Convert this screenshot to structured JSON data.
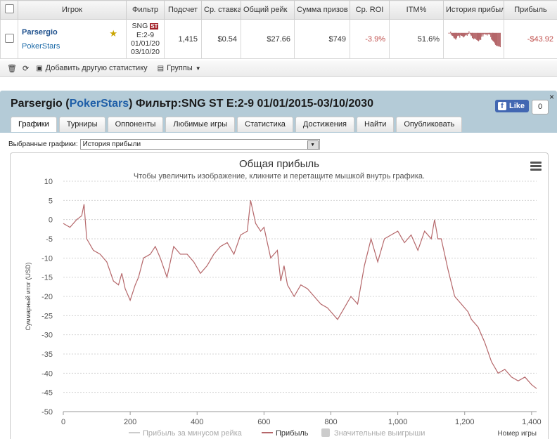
{
  "table": {
    "headers": [
      "Игрок",
      "Фильтр",
      "Подсчет",
      "Ср. ставка",
      "Общий рейк",
      "Сумма призов",
      "Ср. ROI",
      "ITM%",
      "История прибыли",
      "Прибыль"
    ],
    "row": {
      "player": "Parsergio",
      "site": "PokerStars",
      "filter_line1": "SNG",
      "filter_badge": "ST",
      "filter_line2": "E:2-9",
      "filter_line3": "01/01/20",
      "filter_line4": "03/10/20",
      "count": "1,415",
      "avg_stake": "$0.54",
      "total_rake": "$27.66",
      "prize_sum": "$749",
      "avg_roi": "-3.9%",
      "itm": "51.6%",
      "profit": "-$43.92"
    }
  },
  "toolbar": {
    "add_stat": "Добавить другую статистику",
    "groups": "Группы"
  },
  "panel": {
    "title_player": "Parsergio",
    "title_site": "PokerStars",
    "title_filter": "Фильтр:SNG ST E:2-9 01/01/2015-03/10/2030",
    "fb_like": "Like",
    "fb_count": "0",
    "close": "×",
    "tabs": [
      "Графики",
      "Турниры",
      "Оппоненты",
      "Любимые игры",
      "Статистика",
      "Достижения",
      "Найти",
      "Опубликовать"
    ],
    "selected_label": "Выбранные графики:",
    "selected_value": "История прибыли"
  },
  "colors": {
    "line": "#b5676a",
    "header_bg": "#b4cbd7",
    "negative": "#c0504d",
    "link": "#1f5fa8"
  },
  "chart_data": {
    "type": "line",
    "title": "Общая прибыль",
    "subtitle": "Чтобы увеличить изображение, кликните и перетащите мышкой внутрь графика.",
    "ylabel": "Суммарный итог (USD)",
    "xlabel": "Номер игры",
    "xlim": [
      0,
      1415
    ],
    "ylim": [
      -50,
      10
    ],
    "xticks": [
      "0",
      "200",
      "400",
      "600",
      "800",
      "1,000",
      "1,200",
      "1,400"
    ],
    "yticks": [
      "10",
      "5",
      "0",
      "-5",
      "-10",
      "-15",
      "-20",
      "-25",
      "-30",
      "-35",
      "-40",
      "-45",
      "-50"
    ],
    "grid": true,
    "legend_position": "bottom",
    "series": [
      {
        "name": "Прибыль за минусом рейка",
        "values": []
      },
      {
        "name": "Прибыль",
        "x": [
          0,
          20,
          40,
          55,
          62,
          70,
          90,
          110,
          130,
          150,
          165,
          175,
          185,
          200,
          215,
          225,
          240,
          260,
          275,
          290,
          310,
          330,
          350,
          370,
          390,
          410,
          430,
          450,
          470,
          490,
          510,
          530,
          550,
          560,
          575,
          590,
          600,
          610,
          620,
          640,
          650,
          660,
          670,
          690,
          710,
          730,
          750,
          770,
          790,
          800,
          820,
          840,
          860,
          880,
          900,
          920,
          940,
          960,
          980,
          1000,
          1020,
          1040,
          1060,
          1080,
          1100,
          1110,
          1120,
          1130,
          1150,
          1170,
          1190,
          1200,
          1210,
          1220,
          1240,
          1260,
          1280,
          1300,
          1320,
          1340,
          1360,
          1380,
          1400,
          1415
        ],
        "values": [
          -1,
          -2,
          0,
          1,
          4,
          -5,
          -8,
          -9,
          -11,
          -16,
          -17,
          -14,
          -18,
          -21,
          -17,
          -15,
          -10,
          -9,
          -7,
          -10,
          -15,
          -7,
          -9,
          -9,
          -11,
          -14,
          -12,
          -9,
          -7,
          -6,
          -9,
          -4,
          -3,
          5,
          -1,
          -3,
          -2,
          -6,
          -10,
          -8,
          -16,
          -12,
          -17,
          -20,
          -17,
          -18,
          -20,
          -22,
          -23,
          -24,
          -26,
          -23,
          -20,
          -22,
          -12,
          -5,
          -11,
          -5,
          -4,
          -3,
          -6,
          -4,
          -8,
          -3,
          -5,
          0,
          -5,
          -5,
          -13,
          -20,
          -22,
          -23,
          -24,
          -26,
          -28,
          -32,
          -37,
          -40,
          -39,
          -41,
          -42,
          -41,
          -43,
          -44
        ]
      },
      {
        "name": "Значительные выигрыши",
        "values": []
      }
    ]
  }
}
